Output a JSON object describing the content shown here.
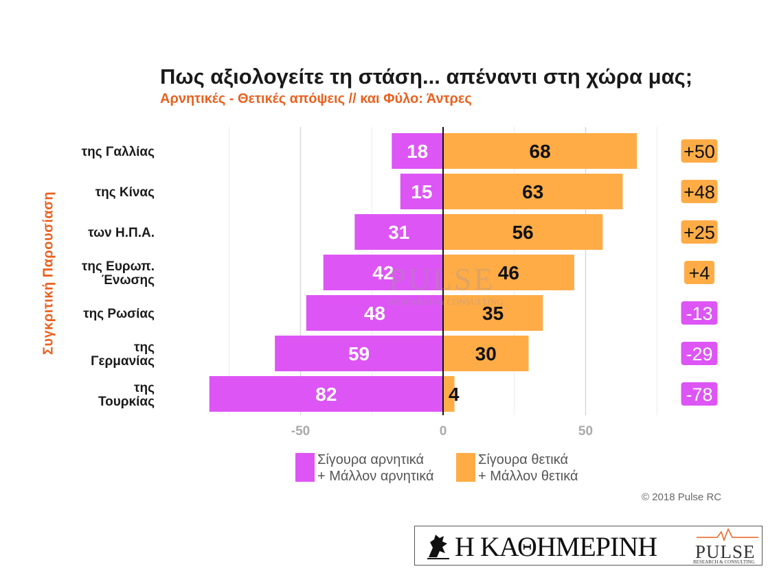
{
  "header": {
    "title": "Πως αξιολογείτε τη στάση... απέναντι στη χώρα μας;",
    "subtitle": "Αρνητικές - Θετικές απόψεις // και Φύλο: Άντρες",
    "side_label": "Συγκριτική  Παρουσίαση"
  },
  "chart_data": {
    "type": "bar",
    "orientation": "horizontal-diverging",
    "categories": [
      [
        "της Γαλλίας"
      ],
      [
        "της Κίνας"
      ],
      [
        "των Η.Π.Α."
      ],
      [
        "της Ευρωπ.",
        "Ένωσης"
      ],
      [
        "της Ρωσίας"
      ],
      [
        "της",
        "Γερμανίας"
      ],
      [
        "της",
        "Τουρκίας"
      ]
    ],
    "series": [
      {
        "name": "Σίγουρα αρνητικά + Μάλλον αρνητικά",
        "color": "#dd55f5",
        "values": [
          18,
          15,
          31,
          42,
          48,
          59,
          82
        ]
      },
      {
        "name": "Σίγουρα θετικά + Μάλλον θετικά",
        "color": "#ffac47",
        "values": [
          68,
          63,
          56,
          46,
          35,
          30,
          4
        ]
      }
    ],
    "net": [
      "+50",
      "+48",
      "+25",
      "+4",
      "-13",
      "-29",
      "-78"
    ],
    "net_colors": [
      "#ffac47",
      "#ffac47",
      "#ffac47",
      "#ffac47",
      "#dd55f5",
      "#dd55f5",
      "#dd55f5"
    ],
    "xlim": [
      -85,
      75
    ],
    "xticks": [
      {
        "value": -50,
        "label": "-50"
      },
      {
        "value": 0,
        "label": "0"
      },
      {
        "value": 50,
        "label": "50"
      }
    ],
    "grid": true
  },
  "legend": {
    "neg_line1": "Σίγουρα αρνητικά",
    "neg_line2": "+ Μάλλον αρνητικά",
    "pos_line1": "Σίγουρα θετικά",
    "pos_line2": "+ Μάλλον θετικά",
    "neg_color": "#dd55f5",
    "pos_color": "#ffac47"
  },
  "copyright": "© 2018 Pulse RC",
  "footer": {
    "newspaper": "Η ΚΑΘΗΜΕΡΙΝΗ",
    "pulse_logo": "PULSE",
    "pulse_sub": "RESEARCH & CONSULTING"
  },
  "watermark": {
    "text": "PULSE",
    "sub": "RESEARCH & CONSULTING"
  }
}
